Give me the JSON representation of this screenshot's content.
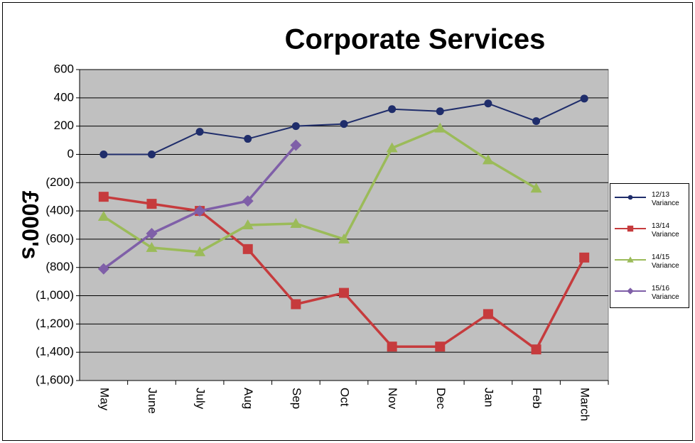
{
  "chart_data": {
    "type": "line",
    "title": "Corporate Services",
    "y_label": "£000's",
    "categories": [
      "May",
      "June",
      "July",
      "Aug",
      "Sep",
      "Oct",
      "Nov",
      "Dec",
      "Jan",
      "Feb",
      "March"
    ],
    "series": [
      {
        "name": "12/13 Variance",
        "color": "#1f2d6b",
        "marker": "circle",
        "values": [
          0,
          0,
          160,
          110,
          200,
          215,
          320,
          305,
          360,
          235,
          395
        ]
      },
      {
        "name": "13/14 Variance",
        "color": "#c63b3d",
        "marker": "square",
        "values": [
          -300,
          -350,
          -400,
          -670,
          -1060,
          -980,
          -1360,
          -1360,
          -1130,
          -1380,
          -730
        ]
      },
      {
        "name": "14/15 Variance",
        "color": "#9bbb59",
        "marker": "triangle",
        "values": [
          -440,
          -660,
          -690,
          -500,
          -490,
          -600,
          45,
          185,
          -40,
          -240,
          null
        ]
      },
      {
        "name": "15/16 Variance",
        "color": "#7f5fa8",
        "marker": "diamond",
        "values": [
          -810,
          -560,
          -400,
          -330,
          65,
          null,
          null,
          null,
          null,
          null,
          null
        ]
      }
    ],
    "ylim": [
      -1600,
      600
    ],
    "yticks": [
      {
        "value": -1600,
        "label": "(1,600)"
      },
      {
        "value": -1400,
        "label": "(1,400)"
      },
      {
        "value": -1200,
        "label": "(1,200)"
      },
      {
        "value": -1000,
        "label": "(1,000)"
      },
      {
        "value": -800,
        "label": "(800)"
      },
      {
        "value": -600,
        "label": "(600)"
      },
      {
        "value": -400,
        "label": "(400)"
      },
      {
        "value": -200,
        "label": "(200)"
      },
      0,
      200,
      400,
      600
    ],
    "grid": true,
    "legend": "right"
  }
}
